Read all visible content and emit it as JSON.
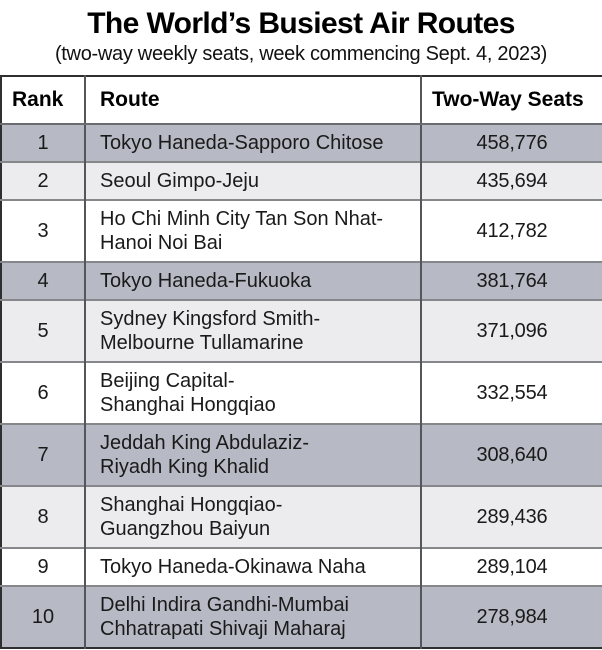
{
  "title": "The World’s Busiest Air Routes",
  "subtitle": "(two-way weekly seats, week commencing Sept. 4, 2023)",
  "table": {
    "columns": {
      "rank": "Rank",
      "route": "Route",
      "seats": "Two-Way Seats"
    },
    "rows": [
      {
        "rank": "1",
        "route": "Tokyo Haneda-Sapporo Chitose",
        "seats": "458,776",
        "shade": "dark"
      },
      {
        "rank": "2",
        "route": "Seoul Gimpo-Jeju",
        "seats": "435,694",
        "shade": "light"
      },
      {
        "rank": "3",
        "route": "Ho Chi Minh City Tan Son Nhat-\nHanoi Noi Bai",
        "seats": "412,782",
        "shade": "white"
      },
      {
        "rank": "4",
        "route": "Tokyo Haneda-Fukuoka",
        "seats": "381,764",
        "shade": "dark"
      },
      {
        "rank": "5",
        "route": "Sydney Kingsford Smith-\nMelbourne Tullamarine",
        "seats": "371,096",
        "shade": "light"
      },
      {
        "rank": "6",
        "route": "Beijing Capital-\nShanghai Hongqiao",
        "seats": "332,554",
        "shade": "white"
      },
      {
        "rank": "7",
        "route": "Jeddah King Abdulaziz-\nRiyadh King Khalid",
        "seats": "308,640",
        "shade": "dark"
      },
      {
        "rank": "8",
        "route": "Shanghai Hongqiao-\nGuangzhou Baiyun",
        "seats": "289,436",
        "shade": "light"
      },
      {
        "rank": "9",
        "route": "Tokyo Haneda-Okinawa Naha",
        "seats": "289,104",
        "shade": "white"
      },
      {
        "rank": "10",
        "route": "Delhi Indira Gandhi-Mumbai\nChhatrapati Shivaji Maharaj",
        "seats": "278,984",
        "shade": "dark"
      }
    ]
  },
  "colors": {
    "row_dark": "#b7bac4",
    "row_light": "#ececee",
    "row_white": "#ffffff",
    "outer_border": "#2f2f2f",
    "row_border": "#85878b",
    "column_border": "#55565a"
  },
  "chart_data": {
    "type": "table",
    "title": "The World’s Busiest Air Routes",
    "subtitle": "(two-way weekly seats, week commencing Sept. 4, 2023)",
    "columns": [
      "Rank",
      "Route",
      "Two-Way Seats"
    ],
    "rows": [
      [
        1,
        "Tokyo Haneda-Sapporo Chitose",
        458776
      ],
      [
        2,
        "Seoul Gimpo-Jeju",
        435694
      ],
      [
        3,
        "Ho Chi Minh City Tan Son Nhat-Hanoi Noi Bai",
        412782
      ],
      [
        4,
        "Tokyo Haneda-Fukuoka",
        381764
      ],
      [
        5,
        "Sydney Kingsford Smith-Melbourne Tullamarine",
        371096
      ],
      [
        6,
        "Beijing Capital-Shanghai Hongqiao",
        332554
      ],
      [
        7,
        "Jeddah King Abdulaziz-Riyadh King Khalid",
        308640
      ],
      [
        8,
        "Shanghai Hongqiao-Guangzhou Baiyun",
        289436
      ],
      [
        9,
        "Tokyo Haneda-Okinawa Naha",
        289104
      ],
      [
        10,
        "Delhi Indira Gandhi-Mumbai Chhatrapati Shivaji Maharaj",
        278984
      ]
    ]
  }
}
